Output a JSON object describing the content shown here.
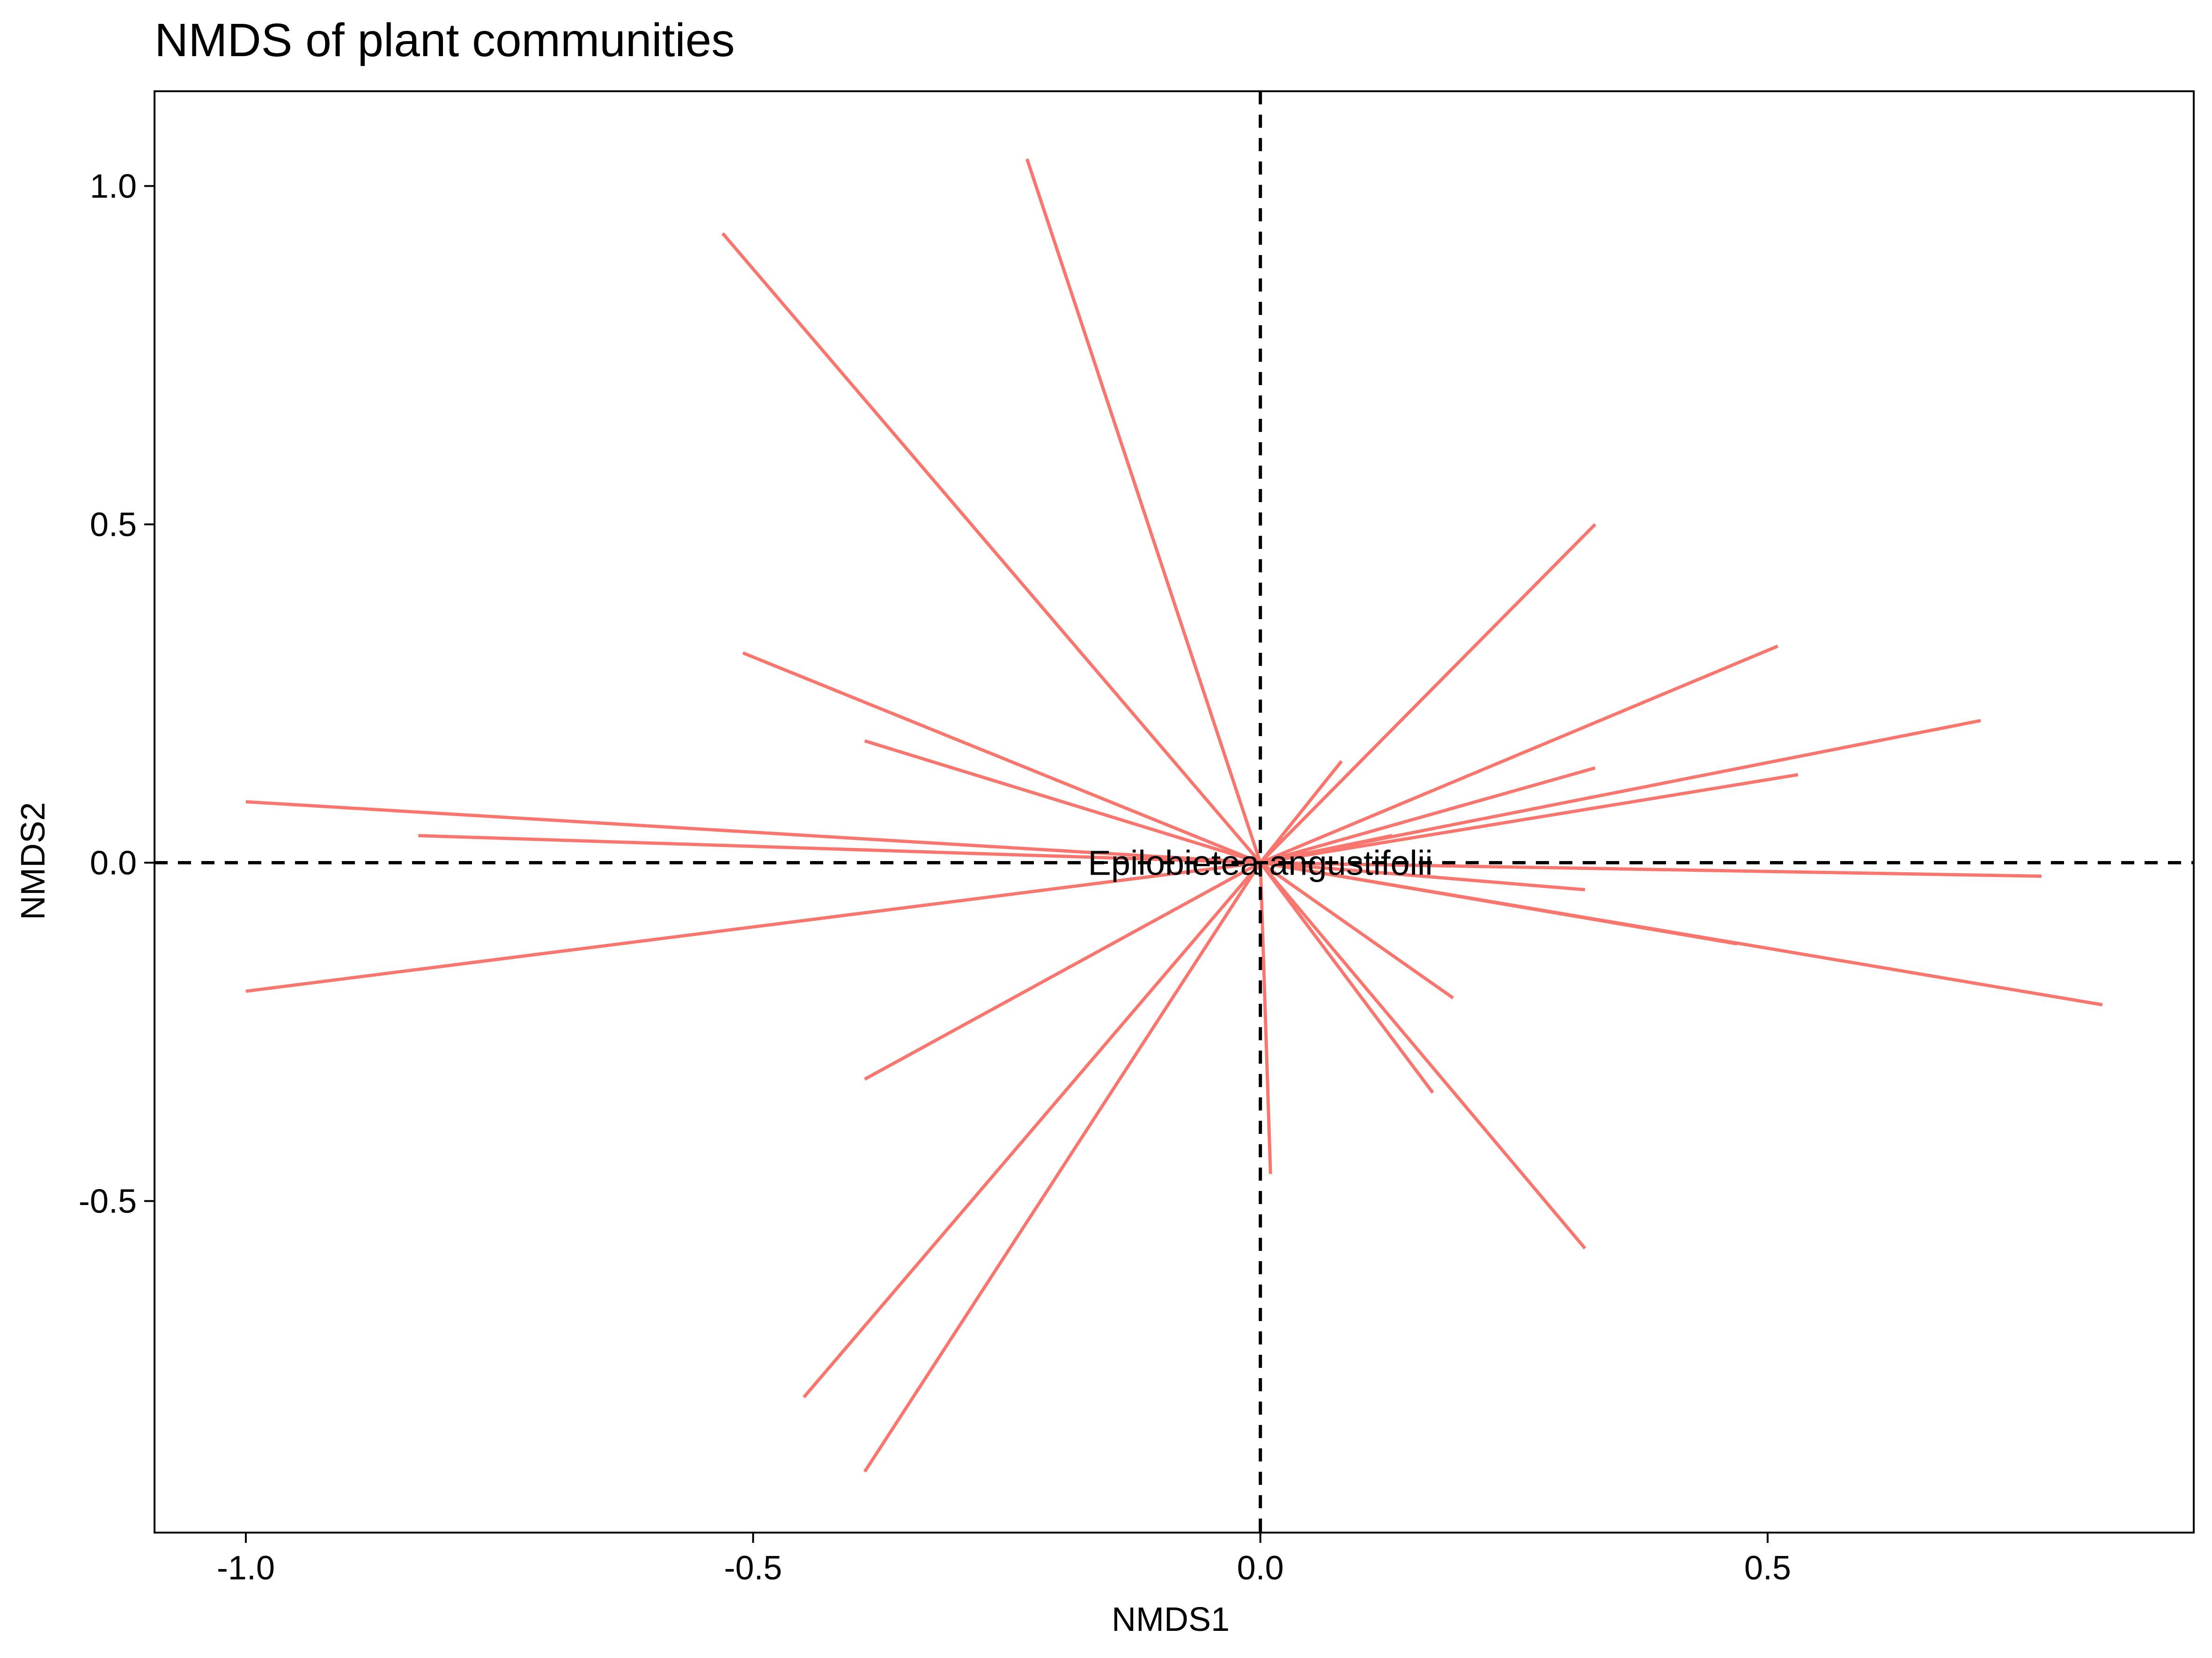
{
  "chart_data": {
    "type": "line",
    "title": "NMDS of plant communities",
    "xlabel": "NMDS1",
    "ylabel": "NMDS2",
    "xlim": [
      -1.09,
      0.92
    ],
    "ylim": [
      -0.99,
      1.14
    ],
    "x_ticks": [
      -1.0,
      -0.5,
      0.0,
      0.5
    ],
    "x_tick_labels": [
      "-1.0",
      "-0.5",
      "0.0",
      "0.5"
    ],
    "y_ticks": [
      -0.5,
      0.0,
      0.5,
      1.0
    ],
    "y_tick_labels": [
      "-0.5",
      "0.0",
      "0.5",
      "1.0"
    ],
    "grid": false,
    "reference_lines": {
      "x": 0,
      "y": 0,
      "style": "dashed",
      "color": "#000000"
    },
    "series_color": "#f8766d",
    "annotation": {
      "text": "Epilobietea angustifolii",
      "x": 0.0,
      "y": 0.0
    },
    "segments": [
      {
        "x": [
          0,
          -0.23
        ],
        "y": [
          0,
          1.04
        ]
      },
      {
        "x": [
          0,
          -0.53
        ],
        "y": [
          0,
          0.93
        ]
      },
      {
        "x": [
          0,
          -0.51
        ],
        "y": [
          0,
          0.31
        ]
      },
      {
        "x": [
          0,
          -0.39
        ],
        "y": [
          0,
          0.18
        ]
      },
      {
        "x": [
          0,
          -1.0
        ],
        "y": [
          0,
          0.09
        ]
      },
      {
        "x": [
          0,
          -0.83
        ],
        "y": [
          0,
          0.04
        ]
      },
      {
        "x": [
          0,
          -1.0
        ],
        "y": [
          0,
          -0.19
        ]
      },
      {
        "x": [
          0,
          -0.39
        ],
        "y": [
          0,
          -0.32
        ]
      },
      {
        "x": [
          0,
          -0.45
        ],
        "y": [
          0,
          -0.79
        ]
      },
      {
        "x": [
          0,
          -0.39
        ],
        "y": [
          0,
          -0.9
        ]
      },
      {
        "x": [
          0,
          0.01
        ],
        "y": [
          0,
          -0.46
        ]
      },
      {
        "x": [
          0,
          0.17
        ],
        "y": [
          0,
          -0.34
        ]
      },
      {
        "x": [
          0,
          0.32
        ],
        "y": [
          0,
          -0.57
        ]
      },
      {
        "x": [
          0,
          0.19
        ],
        "y": [
          0,
          -0.2
        ]
      },
      {
        "x": [
          0,
          0.32
        ],
        "y": [
          0,
          -0.04
        ]
      },
      {
        "x": [
          0,
          0.47
        ],
        "y": [
          0,
          -0.12
        ]
      },
      {
        "x": [
          0,
          0.77
        ],
        "y": [
          0,
          -0.02
        ]
      },
      {
        "x": [
          0,
          0.83
        ],
        "y": [
          0,
          -0.21
        ]
      },
      {
        "x": [
          0,
          0.08
        ],
        "y": [
          0,
          0.15
        ]
      },
      {
        "x": [
          0,
          0.33
        ],
        "y": [
          0,
          0.5
        ]
      },
      {
        "x": [
          0,
          0.51
        ],
        "y": [
          0,
          0.32
        ]
      },
      {
        "x": [
          0,
          0.71
        ],
        "y": [
          0,
          0.21
        ]
      },
      {
        "x": [
          0,
          0.53
        ],
        "y": [
          0,
          0.13
        ]
      },
      {
        "x": [
          0,
          0.33
        ],
        "y": [
          0,
          0.14
        ]
      },
      {
        "x": [
          0,
          0.13
        ],
        "y": [
          0,
          0.04
        ]
      }
    ]
  }
}
